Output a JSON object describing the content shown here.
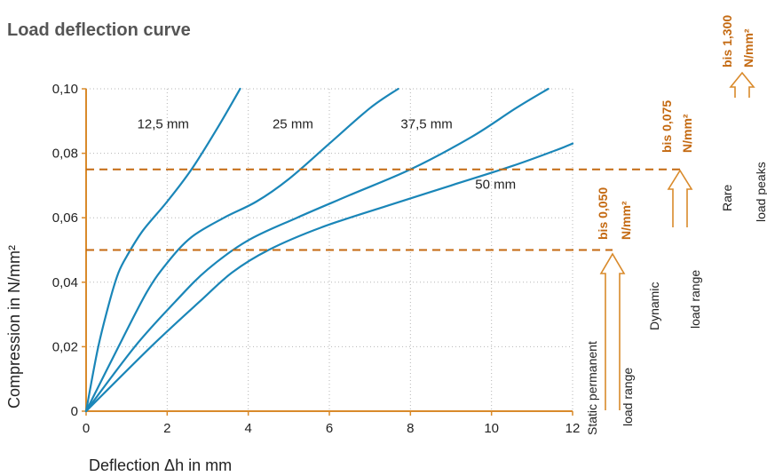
{
  "chart_data": {
    "type": "line",
    "title": "Load deflection curve",
    "xlabel": "Deflection Δh in mm",
    "ylabel": "Compression in N/mm²",
    "xlim": [
      0,
      12
    ],
    "ylim": [
      0,
      0.1
    ],
    "x_ticks": [
      0,
      2,
      4,
      6,
      8,
      10,
      12
    ],
    "x_tick_labels": [
      "0",
      "2",
      "4",
      "6",
      "8",
      "10",
      "12"
    ],
    "y_ticks": [
      0,
      0.02,
      0.04,
      0.06,
      0.08,
      0.1
    ],
    "y_tick_labels": [
      "0",
      "0,02",
      "0,04",
      "0,06",
      "0,08",
      "0,10"
    ],
    "grid": "dotted",
    "colors": {
      "series": "#1a86b8",
      "axis": "#d98a2b",
      "accent": "#c46a12",
      "text": "#222222",
      "title": "#555555"
    },
    "series": [
      {
        "name": "12,5 mm",
        "x": [
          0,
          0.3,
          0.6,
          0.8,
          1.0,
          1.4,
          2.0,
          2.6,
          3.2,
          3.8
        ],
        "y": [
          0,
          0.02,
          0.035,
          0.043,
          0.048,
          0.056,
          0.065,
          0.075,
          0.087,
          0.1
        ]
      },
      {
        "name": "25 mm",
        "x": [
          0,
          0.8,
          1.5,
          2.0,
          2.6,
          3.4,
          4.2,
          5.0,
          6.0,
          7.0,
          7.7
        ],
        "y": [
          0,
          0.02,
          0.037,
          0.046,
          0.054,
          0.06,
          0.065,
          0.072,
          0.083,
          0.094,
          0.1
        ]
      },
      {
        "name": "37,5 mm",
        "x": [
          0,
          1.2,
          2.2,
          3.0,
          4.0,
          5.2,
          6.5,
          8.0,
          9.5,
          10.6,
          11.4
        ],
        "y": [
          0,
          0.02,
          0.034,
          0.044,
          0.053,
          0.06,
          0.067,
          0.075,
          0.085,
          0.094,
          0.1
        ]
      },
      {
        "name": "50 mm",
        "x": [
          0,
          1.6,
          2.8,
          3.6,
          4.5,
          5.8,
          7.5,
          9.0,
          10.5,
          11.6,
          12.0
        ],
        "y": [
          0,
          0.02,
          0.034,
          0.043,
          0.05,
          0.057,
          0.064,
          0.07,
          0.076,
          0.081,
          0.083
        ]
      }
    ],
    "reference_lines": [
      {
        "label": "bis 0,050",
        "unit": "N/mm²",
        "y": 0.05
      },
      {
        "label": "bis 0,075",
        "unit": "N/mm²",
        "y": 0.075
      }
    ],
    "load_ranges": [
      {
        "label_top": "Static permanent",
        "label_bottom": "load range"
      },
      {
        "label_top": "Dynamic",
        "label_bottom": "load range"
      },
      {
        "label_top": "Rare",
        "label_bottom": "load peaks",
        "value": "bis 1,300",
        "unit": "N/mm²"
      }
    ]
  }
}
